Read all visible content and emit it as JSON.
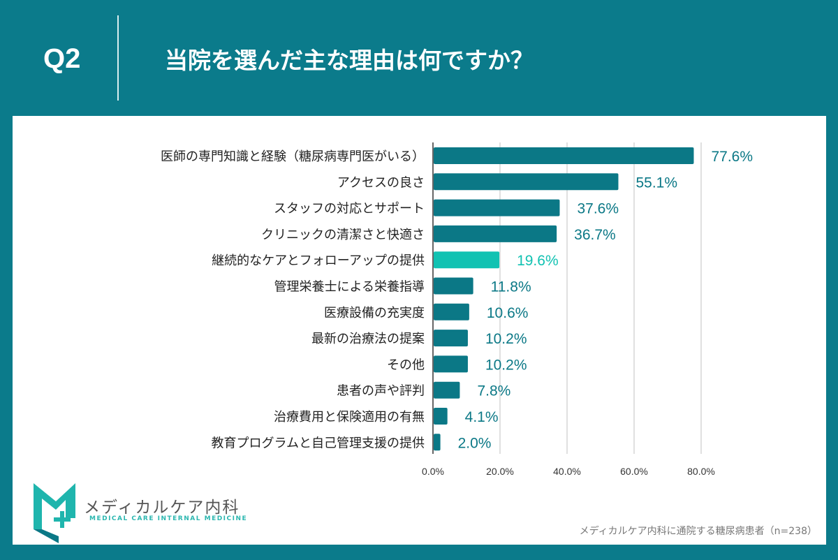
{
  "header": {
    "question": "Q2",
    "title": "当院を選んだ主な理由は何ですか？"
  },
  "logo": {
    "name": "メディカルケア内科",
    "subtitle": "MEDICAL CARE INTERNAL MEDICINE"
  },
  "footnote": "メディカルケア内科に通院する糖尿病患者（n=238）",
  "colors": {
    "bar": "#0b7886",
    "highlight": "#11c2b2",
    "header": "#0b7b8b"
  },
  "chart_data": {
    "type": "bar",
    "orientation": "horizontal",
    "categories": [
      "医師の専門知識と経験（糖尿病専門医がいる）",
      "アクセスの良さ",
      "スタッフの対応とサポート",
      "クリニックの清潔さと快適さ",
      "継続的なケアとフォローアップの提供",
      "管理栄養士による栄養指導",
      "医療設備の充実度",
      "最新の治療法の提案",
      "その他",
      "患者の声や評判",
      "治療費用と保険適用の有無",
      "教育プログラムと自己管理支援の提供"
    ],
    "values": [
      77.6,
      55.1,
      37.6,
      36.7,
      19.6,
      11.8,
      10.6,
      10.2,
      10.2,
      7.8,
      4.1,
      2.0
    ],
    "labels": [
      "77.6%",
      "55.1%",
      "37.6%",
      "36.7%",
      "19.6%",
      "11.8%",
      "10.6%",
      "10.2%",
      "10.2%",
      "7.8%",
      "4.1%",
      "2.0%"
    ],
    "highlight_index": 4,
    "xlim": [
      0,
      80
    ],
    "xticks": [
      "0.0%",
      "20.0%",
      "40.0%",
      "60.0%",
      "80.0%"
    ],
    "grid": true
  }
}
